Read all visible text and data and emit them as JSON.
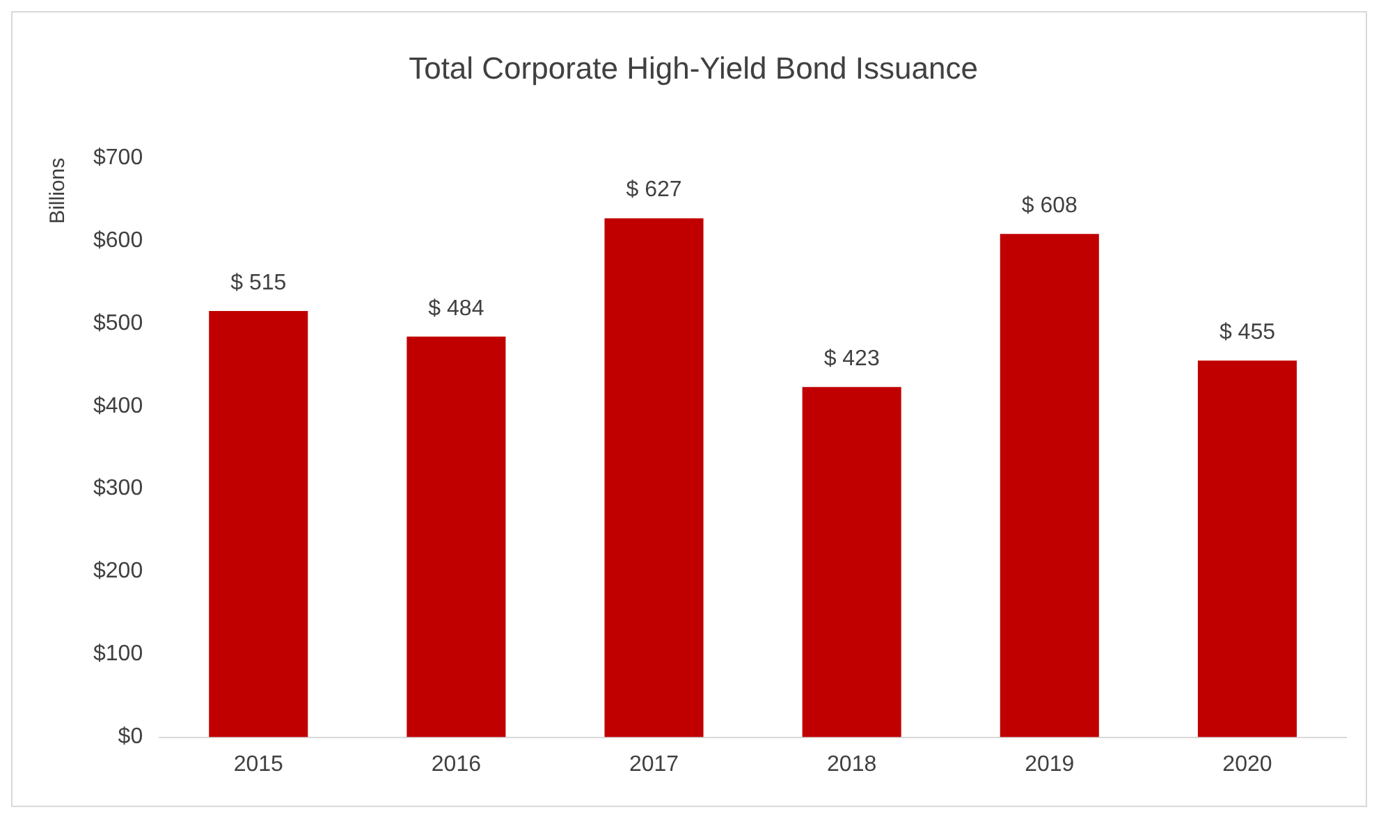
{
  "chart_data": {
    "type": "bar",
    "title": "Total Corporate High-Yield Bond Issuance",
    "ylabel": "Billions",
    "categories": [
      "2015",
      "2016",
      "2017",
      "2018",
      "2019",
      "2020"
    ],
    "values": [
      515,
      484,
      627,
      423,
      608,
      455
    ],
    "value_labels": [
      "$ 515",
      "$ 484",
      "$ 627",
      "$ 423",
      "$ 608",
      "$ 455"
    ],
    "color": "#c00000",
    "ylim": [
      0,
      700
    ],
    "yticks": [
      {
        "value": 0,
        "label": "$0"
      },
      {
        "value": 100,
        "label": "$100"
      },
      {
        "value": 200,
        "label": "$200"
      },
      {
        "value": 300,
        "label": "$300"
      },
      {
        "value": 400,
        "label": "$400"
      },
      {
        "value": 500,
        "label": "$500"
      },
      {
        "value": 600,
        "label": "$600"
      },
      {
        "value": 700,
        "label": "$700"
      }
    ],
    "grid": false,
    "legend": false
  }
}
